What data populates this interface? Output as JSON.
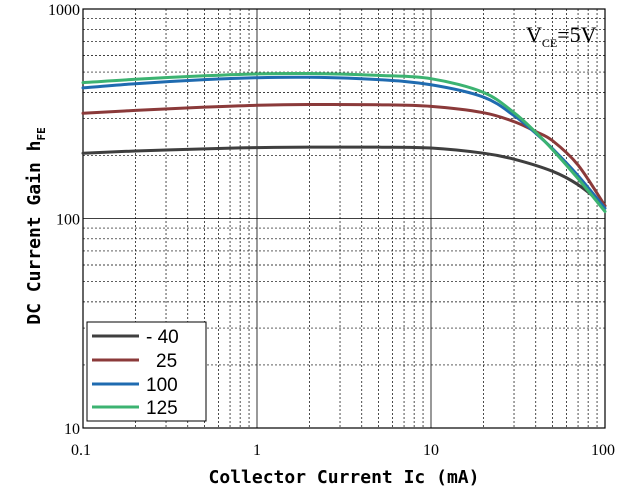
{
  "chart_data": {
    "type": "line",
    "title": "",
    "xlabel": "Collector  Current Ic (mA)",
    "ylabel": {
      "main": "DC Current Gain h",
      "sub": "FE"
    },
    "xscale": "log",
    "yscale": "log",
    "xlim": [
      0.1,
      100
    ],
    "ylim": [
      10,
      1000
    ],
    "x_ticks": [
      {
        "value": 0.1,
        "label": "0.1"
      },
      {
        "value": 1,
        "label": "1"
      },
      {
        "value": 10,
        "label": "10"
      },
      {
        "value": 100,
        "label": "100"
      }
    ],
    "y_ticks": [
      {
        "value": 10,
        "label": "10"
      },
      {
        "value": 100,
        "label": "100"
      },
      {
        "value": 1000,
        "label": "1000"
      }
    ],
    "grid": true,
    "legend_position": "bottom-left",
    "annotation": {
      "main": "V",
      "sub": "CE",
      "tail": "=5V"
    },
    "series": [
      {
        "name": "- 40",
        "color": "#3f3f3f",
        "x": [
          0.1,
          0.2,
          0.5,
          1,
          2,
          5,
          10,
          20,
          30,
          50,
          70,
          100
        ],
        "y": [
          205,
          210,
          215,
          218,
          219,
          219,
          217,
          205,
          192,
          168,
          145,
          115
        ]
      },
      {
        "name": "25",
        "color": "#8b3a3a",
        "x": [
          0.1,
          0.2,
          0.5,
          1,
          2,
          5,
          10,
          20,
          30,
          40,
          50,
          70,
          100
        ],
        "y": [
          318,
          328,
          340,
          347,
          350,
          349,
          343,
          320,
          290,
          260,
          235,
          180,
          115
        ]
      },
      {
        "name": "100",
        "color": "#1f6bb0",
        "x": [
          0.1,
          0.2,
          0.5,
          1,
          2,
          5,
          10,
          20,
          30,
          40,
          50,
          70,
          100
        ],
        "y": [
          420,
          440,
          460,
          470,
          472,
          460,
          435,
          380,
          310,
          255,
          215,
          160,
          112
        ]
      },
      {
        "name": "125",
        "color": "#3cb371",
        "x": [
          0.1,
          0.2,
          0.5,
          1,
          2,
          5,
          10,
          20,
          30,
          40,
          50,
          70,
          100
        ],
        "y": [
          445,
          462,
          480,
          490,
          492,
          482,
          465,
          400,
          320,
          258,
          213,
          155,
          108
        ]
      }
    ]
  }
}
